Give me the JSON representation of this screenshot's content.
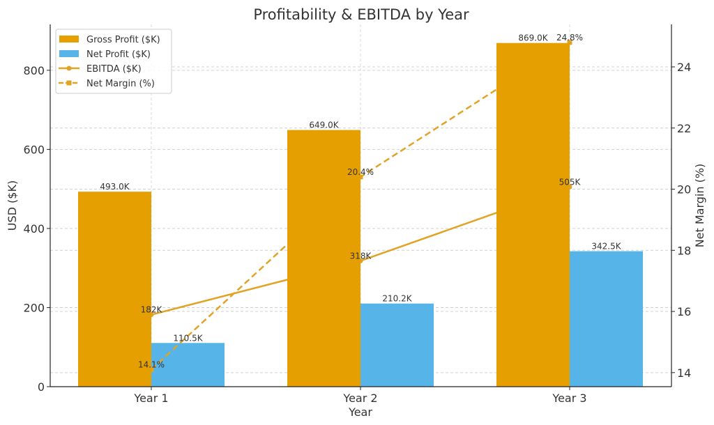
{
  "chart_data": {
    "type": "bar",
    "title": "Profitability & EBITDA by Year",
    "xlabel": "Year",
    "ylabel": "USD ($K)",
    "y2label": "Net Margin (%)",
    "categories": [
      "Year 1",
      "Year 2",
      "Year 3"
    ],
    "ylim": [
      0,
      916
    ],
    "y2lim": [
      13.54,
      25.39
    ],
    "yticks": [
      0,
      200,
      400,
      600,
      800
    ],
    "y2ticks": [
      14,
      16,
      18,
      20,
      22,
      24
    ],
    "grid": true,
    "legend_position": "top-left",
    "series": [
      {
        "name": "Gross Profit ($K)",
        "type": "bar",
        "axis": "left",
        "color": "#E69F00",
        "values": [
          493.0,
          649.0,
          869.0
        ],
        "labels": [
          "493.0K",
          "649.0K",
          "869.0K"
        ]
      },
      {
        "name": "Net Profit ($K)",
        "type": "bar",
        "axis": "left",
        "color": "#56B4E9",
        "values": [
          110.5,
          210.2,
          342.5
        ],
        "labels": [
          "110.5K",
          "210.2K",
          "342.5K"
        ]
      },
      {
        "name": "EBITDA ($K)",
        "type": "line",
        "style": "solid",
        "marker": "circle",
        "axis": "left",
        "color": "#E1A325",
        "values": [
          182,
          318,
          505
        ],
        "labels": [
          "182K",
          "318K",
          "505K"
        ]
      },
      {
        "name": "Net Margin (%)",
        "type": "line",
        "style": "dashed",
        "marker": "square",
        "axis": "right",
        "color": "#E1A325",
        "values": [
          14.1,
          20.4,
          24.8
        ],
        "labels": [
          "14.1%",
          "20.4%",
          "24.8%"
        ]
      }
    ]
  }
}
